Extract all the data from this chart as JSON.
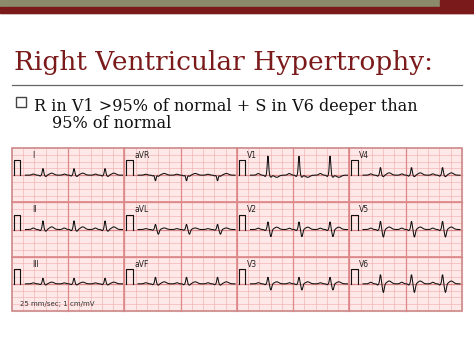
{
  "title": "Right Ventricular Hypertrophy:",
  "title_color": "#7B1A1A",
  "title_fontsize": 19,
  "bullet_text_line1": "R in V1 >95% of normal + S in V6 deeper than",
  "bullet_text_line2": "95% of normal",
  "bullet_fontsize": 11.5,
  "bullet_color": "#111111",
  "background_color": "#FFFFFF",
  "header_bar_color1": "#8B8B6B",
  "header_bar_color2": "#7B1A1A",
  "divider_color": "#666666",
  "ecg_bg_color": "#FFE8E8",
  "ecg_grid_minor_color": "#F0AAAA",
  "ecg_grid_major_color": "#DD8888",
  "ecg_line_color": "#111111",
  "ecg_border_color": "#CC8888",
  "scale_text": "25 mm/sec; 1 cm/mV",
  "checkbox_color": "#444444"
}
